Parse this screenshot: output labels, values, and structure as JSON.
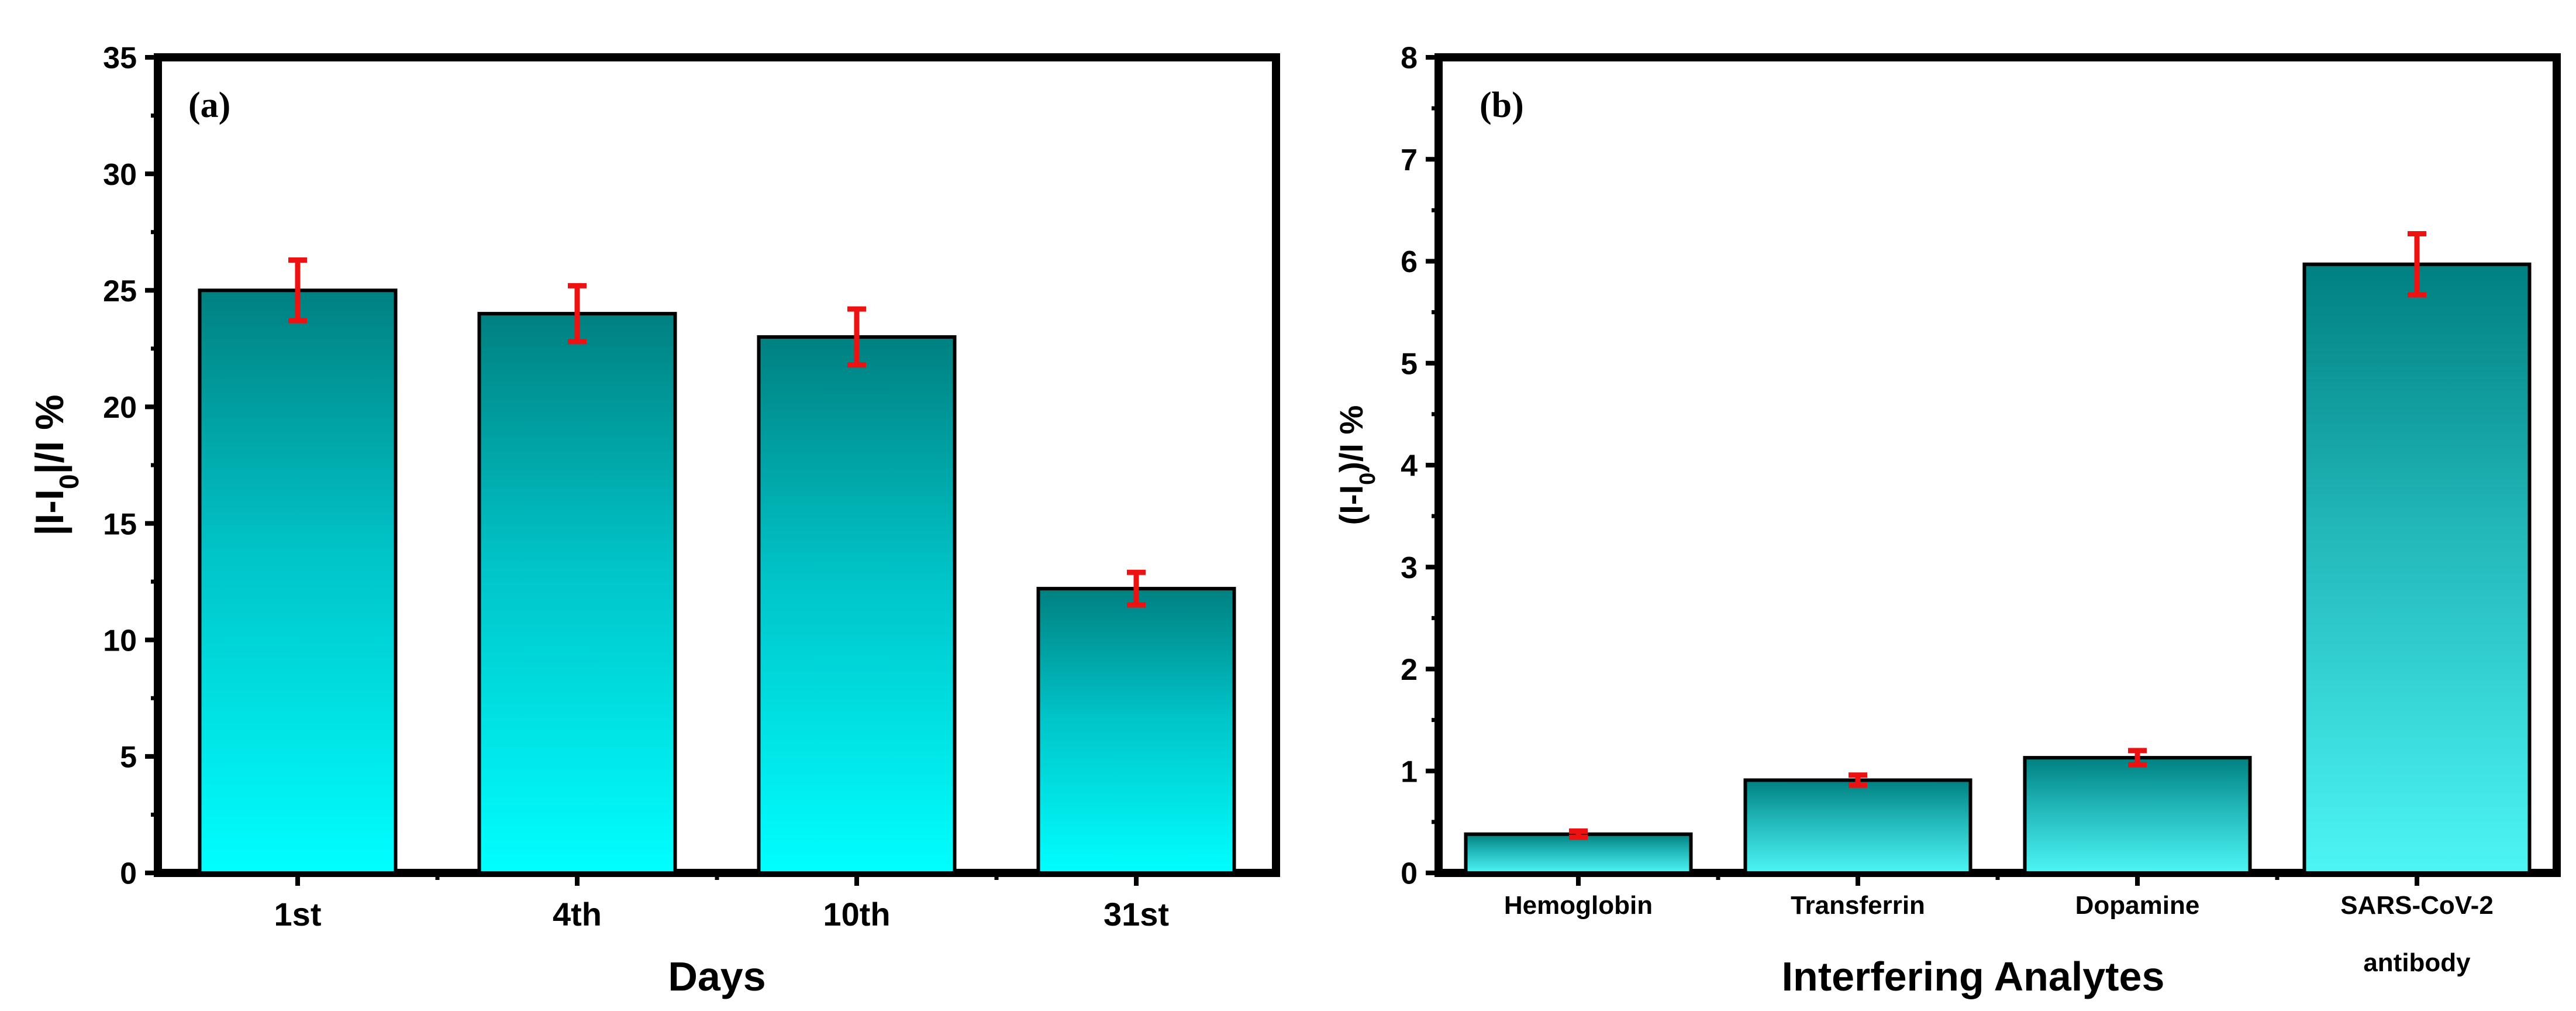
{
  "chart_data": [
    {
      "type": "bar",
      "panel_label": "(a)",
      "categories": [
        "1st",
        "4th",
        "10th",
        "31st"
      ],
      "values": [
        25.0,
        24.0,
        23.0,
        12.2
      ],
      "errors": [
        1.3,
        1.2,
        1.2,
        0.7
      ],
      "xlabel": "Days",
      "ylabel_parts": [
        "|I-I",
        "0",
        "|/I %"
      ],
      "ylim": [
        0,
        35
      ],
      "yticks": [
        0,
        5,
        10,
        15,
        20,
        25,
        30,
        35
      ],
      "bar_gradient": [
        "#00ffff",
        "#008080"
      ],
      "error_color": "#ee1111"
    },
    {
      "type": "bar",
      "panel_label": "(b)",
      "categories": [
        "Hemoglobin",
        "Transferrin",
        "Dopamine",
        "SARS-CoV-2"
      ],
      "category_second_lines": [
        "",
        "",
        "",
        "antibody"
      ],
      "values": [
        0.38,
        0.91,
        1.13,
        5.97
      ],
      "errors": [
        0.03,
        0.05,
        0.07,
        0.3
      ],
      "xlabel": "Interfering Analytes",
      "ylabel_parts": [
        "(I-I",
        "0",
        ")/I %"
      ],
      "ylim": [
        0,
        8
      ],
      "yticks": [
        0,
        1,
        2,
        3,
        4,
        5,
        6,
        7,
        8
      ],
      "bar_gradient": [
        "#4df5f5",
        "#008080"
      ],
      "error_color": "#ee1111"
    }
  ]
}
